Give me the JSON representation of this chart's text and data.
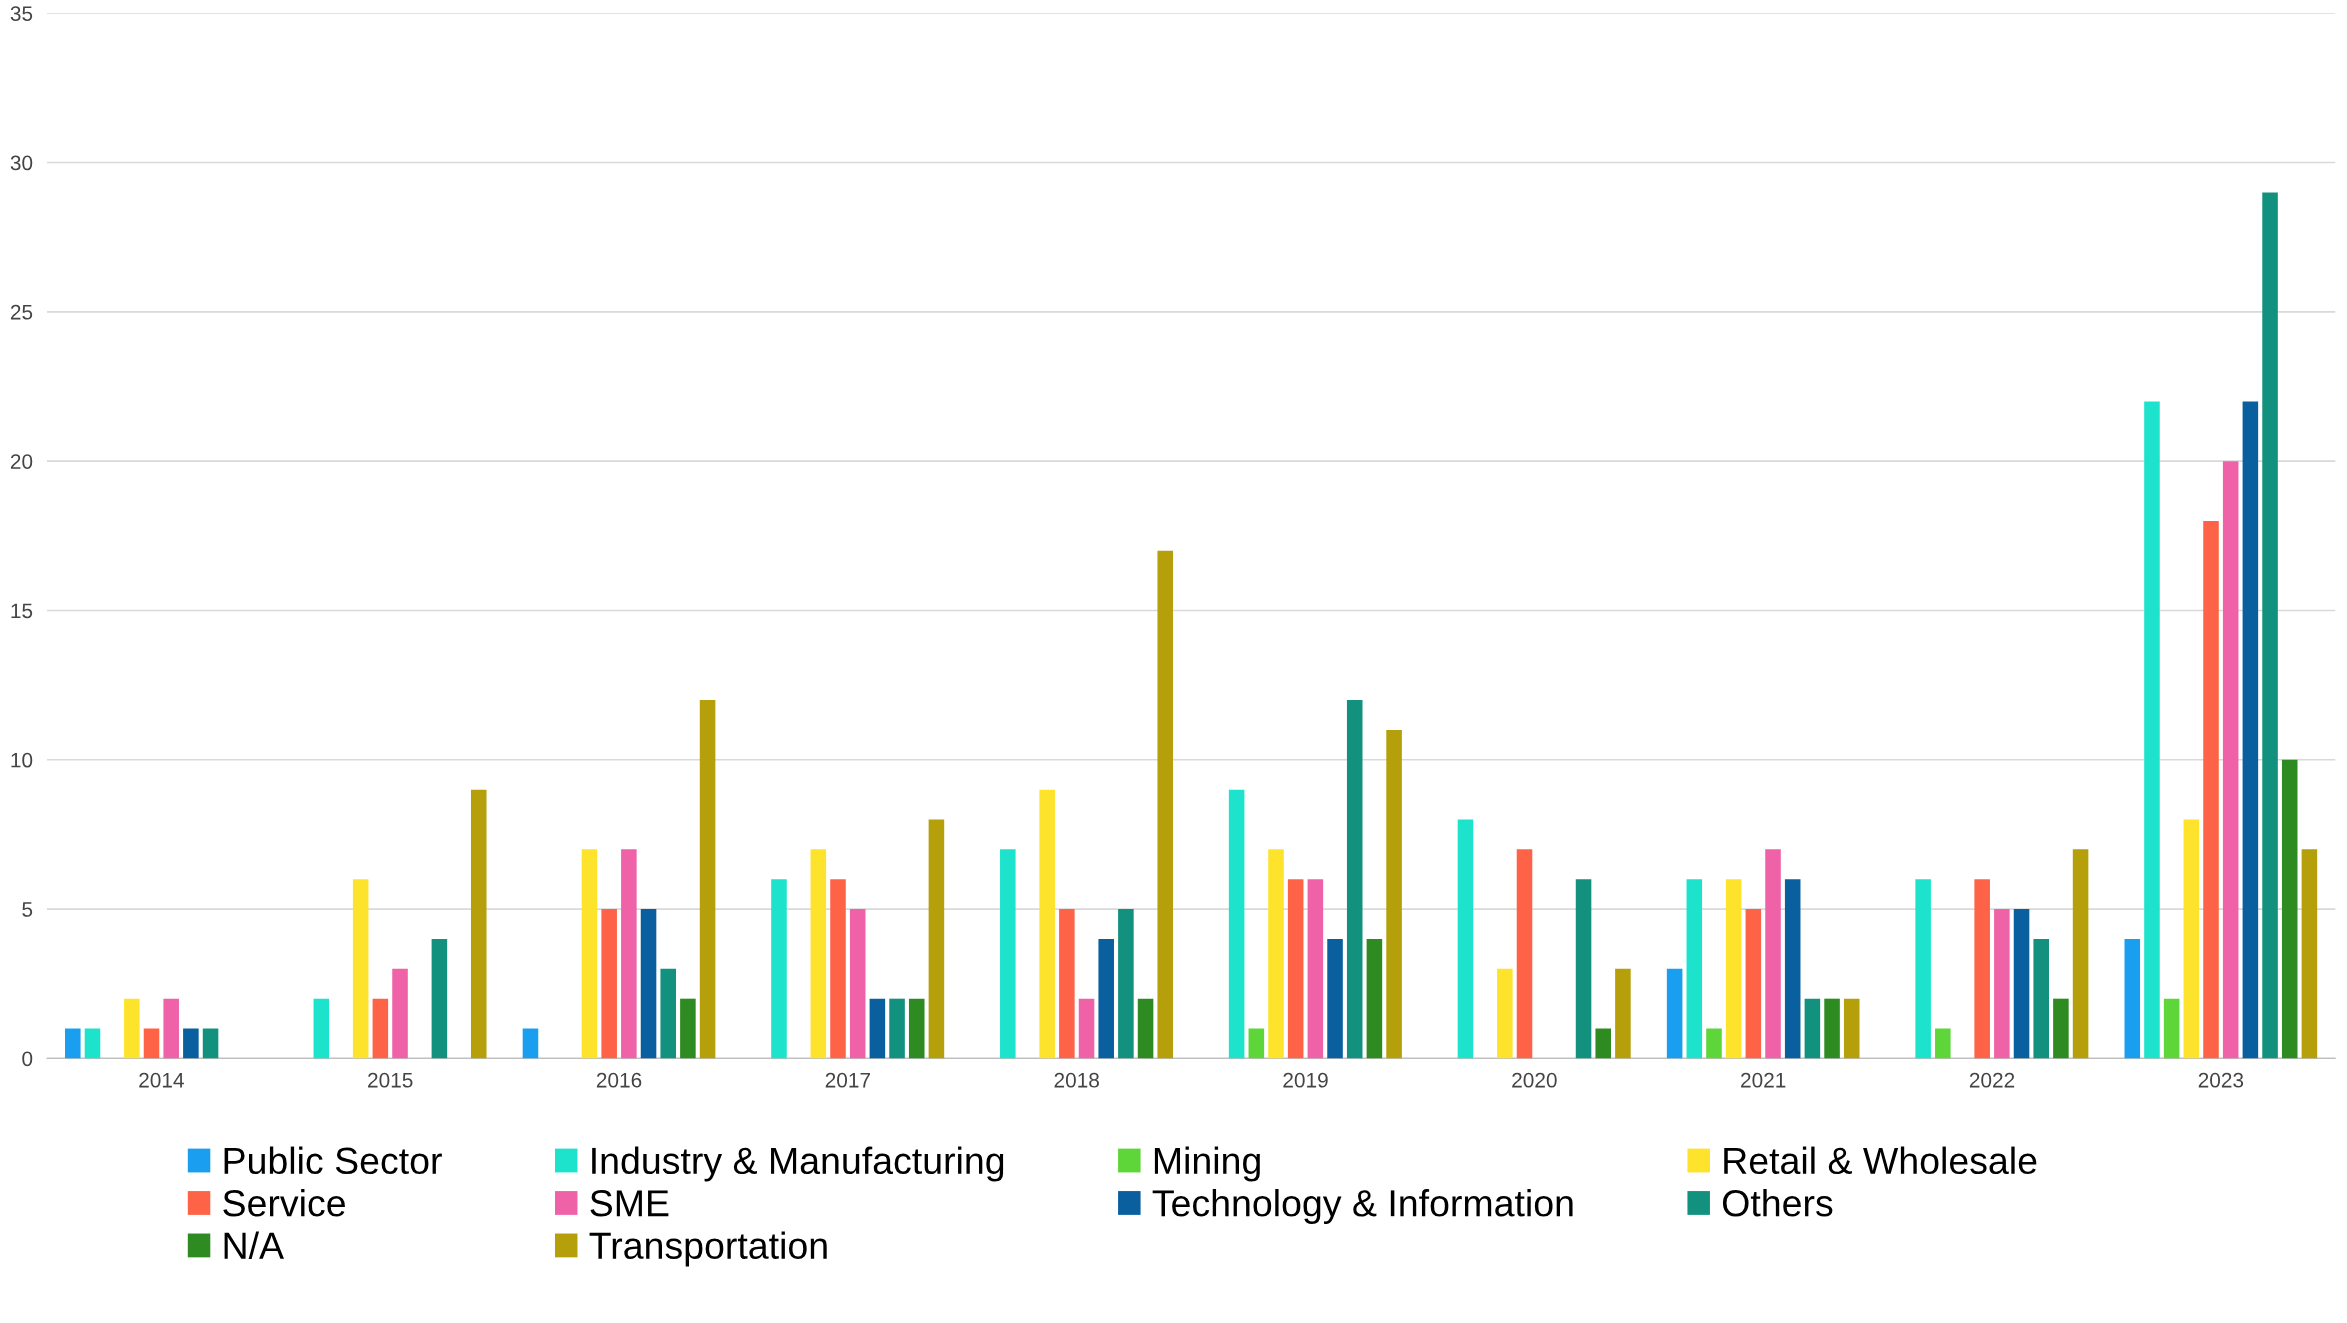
{
  "chart_data": {
    "type": "bar",
    "categories": [
      "2014",
      "2015",
      "2016",
      "2017",
      "2018",
      "2019",
      "2020",
      "2021",
      "2022",
      "2023"
    ],
    "series": [
      {
        "name": "Public Sector",
        "color": "#1a9ff0",
        "values": [
          1,
          0,
          1,
          0,
          0,
          0,
          0,
          3,
          0,
          4
        ]
      },
      {
        "name": "Industry & Manufacturing",
        "color": "#1de3cc",
        "values": [
          1,
          2,
          0,
          6,
          7,
          9,
          8,
          6,
          6,
          22
        ]
      },
      {
        "name": "Mining",
        "color": "#5ed63a",
        "values": [
          0,
          0,
          0,
          0,
          0,
          1,
          0,
          1,
          1,
          2
        ]
      },
      {
        "name": "Retail & Wholesale",
        "color": "#fde32c",
        "values": [
          2,
          6,
          7,
          7,
          9,
          7,
          3,
          6,
          0,
          8
        ]
      },
      {
        "name": "Service",
        "color": "#ff6347",
        "values": [
          1,
          2,
          5,
          6,
          5,
          6,
          7,
          5,
          6,
          18
        ]
      },
      {
        "name": "SME",
        "color": "#f062a8",
        "values": [
          2,
          3,
          7,
          5,
          2,
          6,
          0,
          7,
          5,
          20
        ]
      },
      {
        "name": "Technology & Information",
        "color": "#0a5f9e",
        "values": [
          1,
          0,
          5,
          2,
          4,
          4,
          0,
          6,
          5,
          22
        ]
      },
      {
        "name": "Others",
        "color": "#12917e",
        "values": [
          1,
          4,
          3,
          2,
          5,
          12,
          6,
          2,
          4,
          29
        ]
      },
      {
        "name": "N/A",
        "color": "#2e8b22",
        "values": [
          0,
          0,
          2,
          2,
          2,
          4,
          1,
          2,
          2,
          10
        ]
      },
      {
        "name": "Transportation",
        "color": "#b59f0b",
        "values": [
          0,
          9,
          12,
          8,
          17,
          11,
          3,
          2,
          7,
          7
        ]
      }
    ],
    "ylim": [
      0,
      35
    ],
    "yticks": [
      0,
      5,
      10,
      15,
      20,
      25,
      30,
      35
    ],
    "grid": "y",
    "legend": "bottom"
  }
}
